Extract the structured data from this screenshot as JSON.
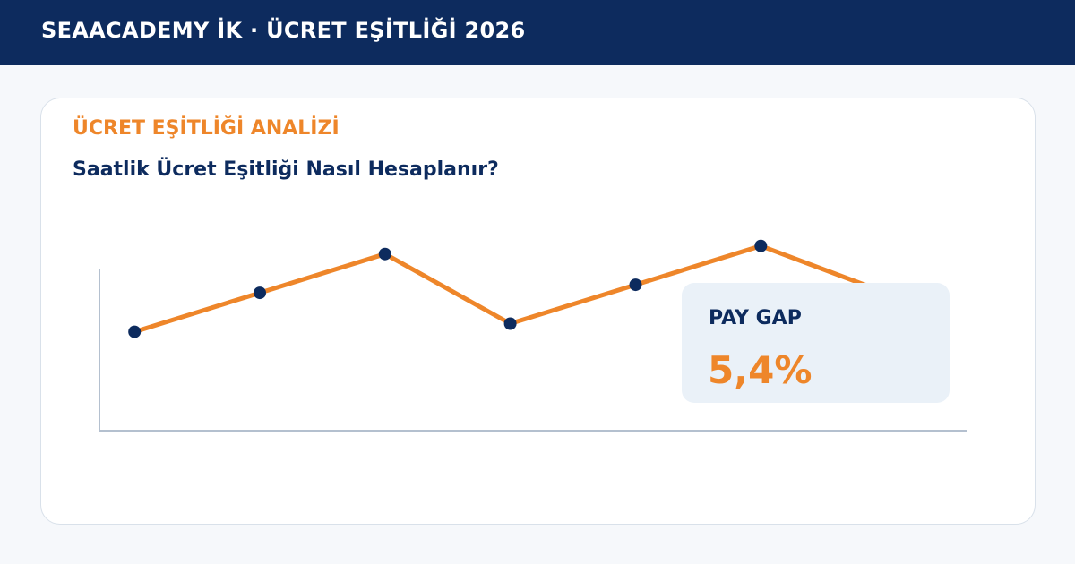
{
  "header": {
    "title": "SEAACADEMY İK · ÜCRET EŞİTLİĞİ 2026"
  },
  "card": {
    "eyebrow": "ÜCRET EŞİTLİĞİ ANALİZİ",
    "title": "Saatlik Ücret Eşitliği Nasıl Hesaplanır?"
  },
  "callout": {
    "label": "PAY GAP",
    "value": "5,4%"
  },
  "colors": {
    "header_bg": "#0d2b5e",
    "accent": "#ee862a",
    "navy": "#0d2b5e",
    "axis": "#b4c0cf",
    "callout_bg": "#eaf1f8",
    "card_border": "#d9e1ea"
  },
  "chart_data": {
    "type": "line",
    "x": [
      1,
      2,
      3,
      4,
      5,
      6,
      7
    ],
    "series": [
      {
        "values": [
          46,
          70,
          94,
          51,
          75,
          99,
          70
        ]
      }
    ],
    "xlim": [
      0.72,
      7.65
    ],
    "ylim": [
      -15,
      85
    ],
    "grid": false,
    "legend": "none"
  }
}
